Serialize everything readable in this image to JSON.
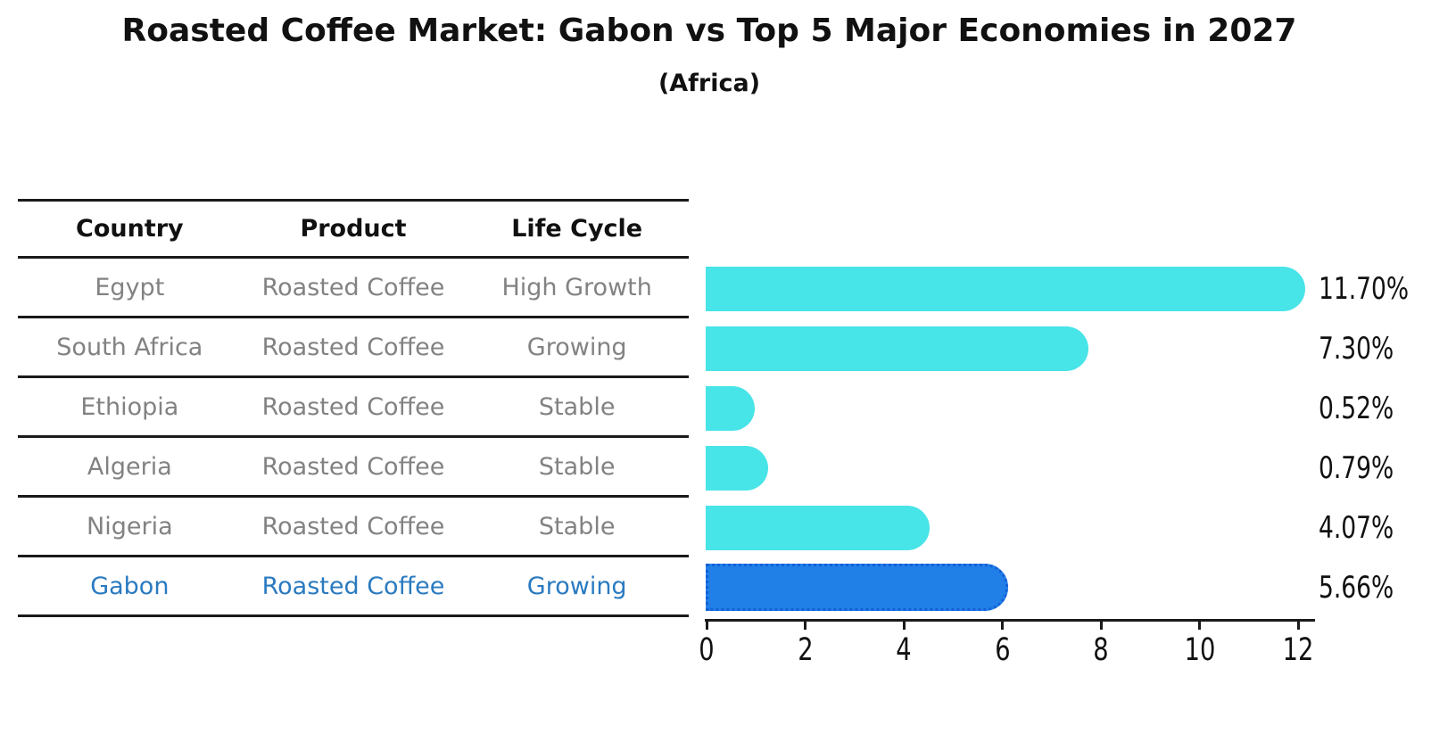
{
  "title": "Roasted Coffee Market: Gabon vs Top 5 Major Economies in 2027",
  "subtitle": "(Africa)",
  "table": {
    "headers": [
      "Country",
      "Product",
      "Life Cycle"
    ],
    "rows": [
      {
        "country": "Egypt",
        "product": "Roasted Coffee",
        "life_cycle": "High Growth"
      },
      {
        "country": "South Africa",
        "product": "Roasted Coffee",
        "life_cycle": "Growing"
      },
      {
        "country": "Ethiopia",
        "product": "Roasted Coffee",
        "life_cycle": "Stable"
      },
      {
        "country": "Algeria",
        "product": "Roasted Coffee",
        "life_cycle": "Stable"
      },
      {
        "country": "Nigeria",
        "product": "Roasted Coffee",
        "life_cycle": "Stable"
      },
      {
        "country": "Gabon",
        "product": "Roasted Coffee",
        "life_cycle": "Growing"
      }
    ]
  },
  "chart_data": {
    "type": "bar",
    "orientation": "horizontal",
    "title": "Roasted Coffee Market: Gabon vs Top 5 Major Economies in 2027",
    "subtitle": "(Africa)",
    "categories": [
      "Egypt",
      "South Africa",
      "Ethiopia",
      "Algeria",
      "Nigeria",
      "Gabon"
    ],
    "values": [
      11.7,
      7.3,
      0.52,
      0.79,
      4.07,
      5.66
    ],
    "value_labels": [
      "11.70%",
      "7.30%",
      "0.52%",
      "0.79%",
      "4.07%",
      "5.66%"
    ],
    "xlabel": "",
    "ylabel": "",
    "xlim": [
      0,
      12
    ],
    "x_ticks": [
      "0",
      "2",
      "4",
      "6",
      "8",
      "10",
      "12"
    ],
    "grid": false,
    "legend": false,
    "highlight_index": 5,
    "colors": {
      "default_bar": "#47e4e8",
      "highlight_bar": "#2080e8",
      "highlight_bar_border": "#145fd8",
      "highlight_text": "#2a7ac0",
      "cell_text": "#828282",
      "header_text": "#111111",
      "axis_line": "#1a1a1a"
    }
  }
}
